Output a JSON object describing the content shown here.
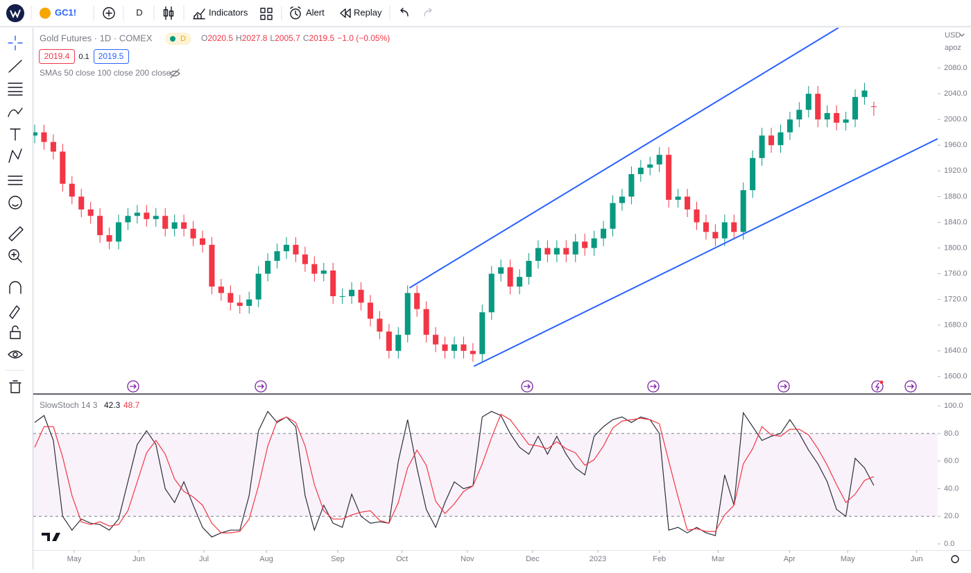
{
  "toolbar": {
    "symbol": "GC1!",
    "interval": "D",
    "indicators": "Indicators",
    "alert": "Alert",
    "replay": "Replay"
  },
  "header": {
    "title": "Gold Futures · 1D · COMEX",
    "badge": "D",
    "ohlc_labels": [
      "O",
      "H",
      "L",
      "C"
    ],
    "change": "−1.0 (−0.05%)",
    "bid": "2019.4",
    "spread": "0.1",
    "ask": "2019.5",
    "indicator": "SMAs 50 close 100 close 200 close"
  },
  "currency": "USD",
  "scale_mode": "apoz",
  "chart_data": [
    {
      "type": "candlestick",
      "up_color": "#089981",
      "down_color": "#f23645",
      "xlim": [
        -0.15,
        96.85
      ],
      "ylim": [
        1575,
        2142.7
      ],
      "grid": false,
      "yticks": [
        {
          "value": 1600,
          "label": "1600.0"
        },
        {
          "value": 1640,
          "label": "1640.0"
        },
        {
          "value": 1680,
          "label": "1680.0"
        },
        {
          "value": 1720,
          "label": "1720.0"
        },
        {
          "value": 1760,
          "label": "1760.0"
        },
        {
          "value": 1800,
          "label": "1800.0"
        },
        {
          "value": 1840,
          "label": "1840.0"
        },
        {
          "value": 1880,
          "label": "1880.0"
        },
        {
          "value": 1920,
          "label": "1920.0"
        },
        {
          "value": 1960,
          "label": "1960.0"
        },
        {
          "value": 2000,
          "label": "2000.0"
        },
        {
          "value": 2040,
          "label": "2040.0"
        },
        {
          "value": 2080,
          "label": "2080.0"
        }
      ],
      "open": [
        1975,
        1980,
        1965,
        1950,
        1900,
        1880,
        1860,
        1850,
        1820,
        1810,
        1840,
        1850,
        1855,
        1845,
        1850,
        1830,
        1840,
        1830,
        1815,
        1805,
        1740,
        1730,
        1715,
        1710,
        1720,
        1760,
        1780,
        1795,
        1805,
        1790,
        1775,
        1760,
        1765,
        1725,
        1725,
        1735,
        1715,
        1690,
        1670,
        1640,
        1665,
        1730,
        1705,
        1665,
        1650,
        1640,
        1650,
        1640,
        1635,
        1700,
        1760,
        1770,
        1740,
        1755,
        1780,
        1800,
        1790,
        1800,
        1790,
        1810,
        1800,
        1815,
        1830,
        1870,
        1880,
        1915,
        1925,
        1930,
        1945,
        1875,
        1880,
        1860,
        1840,
        1825,
        1815,
        1840,
        1825,
        1890,
        1940,
        1975,
        1960,
        1980,
        2000,
        2015,
        2040,
        2000,
        2010,
        1995,
        2000,
        2035,
        2020.5
      ],
      "high": [
        1992,
        1992,
        1977,
        1962,
        1912,
        1892,
        1872,
        1862,
        1832,
        1852,
        1862,
        1867,
        1867,
        1862,
        1862,
        1852,
        1852,
        1842,
        1827,
        1817,
        1752,
        1742,
        1727,
        1732,
        1772,
        1792,
        1807,
        1817,
        1817,
        1802,
        1787,
        1777,
        1777,
        1737,
        1747,
        1747,
        1727,
        1702,
        1682,
        1677,
        1742,
        1742,
        1717,
        1677,
        1662,
        1662,
        1662,
        1652,
        1712,
        1772,
        1782,
        1782,
        1767,
        1792,
        1812,
        1812,
        1812,
        1812,
        1822,
        1822,
        1827,
        1842,
        1882,
        1892,
        1927,
        1937,
        1942,
        1957,
        1957,
        1892,
        1892,
        1872,
        1852,
        1837,
        1852,
        1852,
        1902,
        1952,
        1987,
        1987,
        1992,
        2012,
        2027,
        2052,
        2052,
        2022,
        2022,
        2012,
        2047,
        2057,
        2027.8
      ],
      "low": [
        1963,
        1953,
        1938,
        1888,
        1868,
        1848,
        1838,
        1808,
        1798,
        1798,
        1828,
        1838,
        1833,
        1833,
        1818,
        1818,
        1818,
        1803,
        1793,
        1728,
        1718,
        1703,
        1698,
        1698,
        1708,
        1748,
        1768,
        1783,
        1778,
        1763,
        1748,
        1748,
        1713,
        1713,
        1713,
        1703,
        1678,
        1658,
        1628,
        1628,
        1653,
        1693,
        1653,
        1638,
        1628,
        1628,
        1628,
        1623,
        1623,
        1688,
        1748,
        1728,
        1728,
        1743,
        1768,
        1778,
        1778,
        1778,
        1778,
        1788,
        1788,
        1803,
        1818,
        1858,
        1868,
        1903,
        1913,
        1918,
        1863,
        1863,
        1848,
        1828,
        1813,
        1803,
        1803,
        1813,
        1813,
        1878,
        1928,
        1948,
        1948,
        1968,
        1988,
        2003,
        1988,
        1988,
        1983,
        1983,
        1988,
        2023,
        2005.7
      ],
      "close": [
        1980,
        1965,
        1950,
        1900,
        1880,
        1860,
        1850,
        1820,
        1810,
        1840,
        1850,
        1855,
        1845,
        1850,
        1830,
        1840,
        1830,
        1815,
        1805,
        1740,
        1730,
        1715,
        1710,
        1720,
        1760,
        1780,
        1795,
        1805,
        1790,
        1775,
        1760,
        1765,
        1725,
        1725,
        1735,
        1715,
        1690,
        1670,
        1640,
        1665,
        1730,
        1705,
        1665,
        1650,
        1640,
        1650,
        1640,
        1635,
        1700,
        1760,
        1770,
        1740,
        1755,
        1780,
        1800,
        1790,
        1800,
        1790,
        1810,
        1800,
        1815,
        1830,
        1870,
        1880,
        1915,
        1925,
        1930,
        1945,
        1875,
        1880,
        1860,
        1840,
        1825,
        1815,
        1840,
        1825,
        1890,
        1940,
        1975,
        1960,
        1980,
        2000,
        2015,
        2040,
        2000,
        2010,
        1995,
        2000,
        2035,
        2045,
        2019.5
      ],
      "trend_lines": [
        {
          "color": "#2962ff",
          "x": [
            40.2,
            86.2
          ],
          "y": [
            1738,
            2142.7
          ]
        },
        {
          "color": "#2962ff",
          "x": [
            47.1,
            96.85
          ],
          "y": [
            1616,
            1970
          ]
        }
      ]
    },
    {
      "type": "line",
      "title": "SlowStoch 14 3",
      "xlim": [
        -0.15,
        96.85
      ],
      "ylim": [
        -4.5,
        107.6
      ],
      "band": [
        20,
        80
      ],
      "band_color": "#9c27b0",
      "yticks": [
        {
          "value": 0,
          "label": "0.0"
        },
        {
          "value": 20,
          "label": "20.0"
        },
        {
          "value": 40,
          "label": "40.0"
        },
        {
          "value": 60,
          "label": "60.0"
        },
        {
          "value": 80,
          "label": "80.0"
        },
        {
          "value": 100,
          "label": "100.0"
        }
      ],
      "xticks": [
        {
          "value": 4.24,
          "label": "May"
        },
        {
          "value": 11.16,
          "label": "Jun"
        },
        {
          "value": 18.15,
          "label": "Jul"
        },
        {
          "value": 24.85,
          "label": "Aug"
        },
        {
          "value": 32.5,
          "label": "Sep"
        },
        {
          "value": 39.4,
          "label": "Oct"
        },
        {
          "value": 46.4,
          "label": "Nov"
        },
        {
          "value": 53.4,
          "label": "Dec"
        },
        {
          "value": 60.4,
          "label": "2023"
        },
        {
          "value": 67.0,
          "label": "Feb"
        },
        {
          "value": 73.3,
          "label": "Mar"
        },
        {
          "value": 80.95,
          "label": "Apr"
        },
        {
          "value": 87.2,
          "label": "May"
        },
        {
          "value": 94.6,
          "label": "Jun"
        }
      ],
      "series": [
        {
          "color": "#2a2e39",
          "values": [
            88,
            93,
            75,
            20,
            10,
            18,
            15,
            14,
            10,
            18,
            45,
            72,
            82,
            72,
            40,
            30,
            45,
            28,
            12,
            5,
            8,
            10,
            10,
            35,
            82,
            96,
            88,
            92,
            85,
            35,
            10,
            28,
            15,
            12,
            36,
            20,
            15,
            16,
            15,
            60,
            90,
            55,
            25,
            12,
            30,
            45,
            40,
            42,
            92,
            96,
            93,
            80,
            70,
            65,
            78,
            65,
            78,
            65,
            55,
            50,
            78,
            85,
            90,
            92,
            88,
            92,
            90,
            80,
            10,
            12,
            8,
            12,
            8,
            6,
            50,
            28,
            95,
            85,
            75,
            78,
            80,
            90,
            80,
            68,
            58,
            45,
            25,
            20,
            62,
            55,
            42.3
          ]
        },
        {
          "color": "#f23645",
          "values": [
            70,
            85,
            85,
            63,
            35,
            16,
            14,
            16,
            13,
            14,
            24,
            45,
            66,
            75,
            65,
            47,
            38,
            34,
            28,
            15,
            8,
            8,
            9,
            18,
            42,
            71,
            89,
            92,
            88,
            71,
            43,
            24,
            18,
            18,
            21,
            23,
            24,
            17,
            15,
            30,
            55,
            68,
            57,
            31,
            22,
            29,
            38,
            42,
            58,
            77,
            94,
            90,
            81,
            72,
            71,
            69,
            74,
            69,
            66,
            57,
            61,
            71,
            84,
            89,
            90,
            91,
            90,
            87,
            60,
            34,
            10,
            11,
            9,
            9,
            21,
            28,
            58,
            69,
            85,
            79,
            78,
            83,
            83,
            79,
            69,
            57,
            43,
            30,
            36,
            46,
            48.7
          ]
        }
      ]
    }
  ]
}
